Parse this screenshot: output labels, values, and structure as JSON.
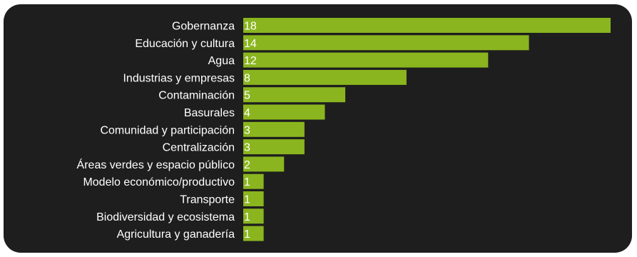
{
  "colors": {
    "background": "#1e1e1e",
    "bar": "#8ab51f",
    "text": "#ffffff"
  },
  "chart_data": {
    "type": "bar",
    "orientation": "horizontal",
    "title": "",
    "xlabel": "",
    "ylabel": "",
    "grid": false,
    "legend": "none",
    "categories": [
      "Gobernanza",
      "Educación y cultura",
      "Agua",
      "Industrias y empresas",
      "Contaminación",
      "Basurales",
      "Comunidad y participación",
      "Centralización",
      "Áreas verdes y espacio público",
      "Modelo económico/productivo",
      "Transporte",
      "Biodiversidad y ecosistema",
      "Agricultura y ganadería"
    ],
    "values": [
      18,
      14,
      12,
      8,
      5,
      4,
      3,
      3,
      2,
      1,
      1,
      1,
      1
    ],
    "value_labels": [
      "18",
      "14",
      "12",
      "8",
      "5",
      "4",
      "3",
      "3",
      "2",
      "1",
      "1",
      "1",
      "1"
    ],
    "xlim": [
      0,
      18
    ]
  }
}
